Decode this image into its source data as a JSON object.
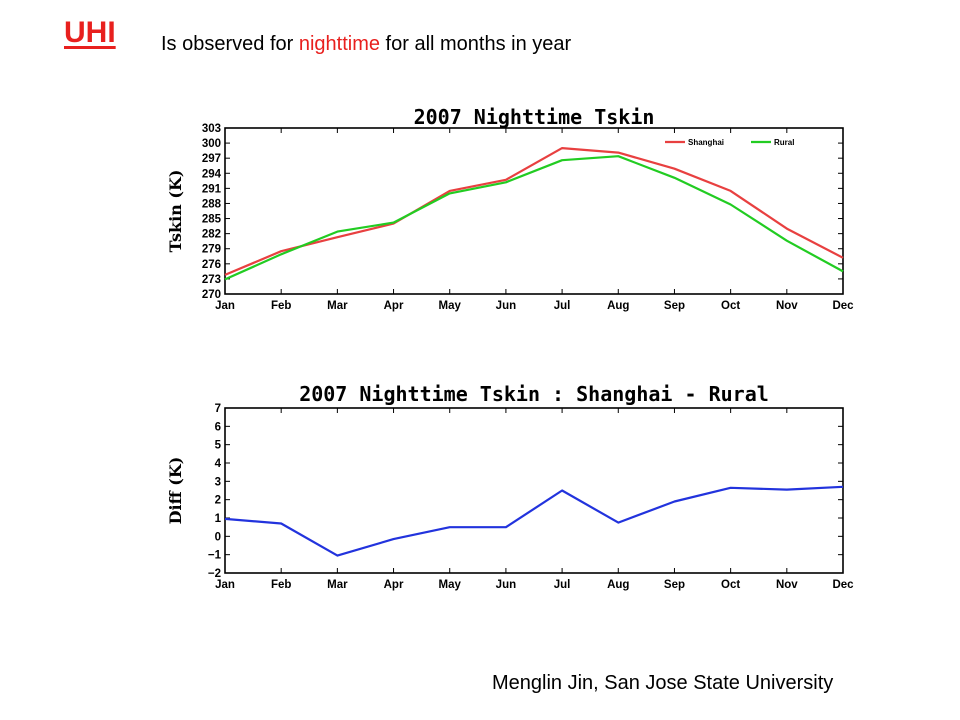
{
  "header": {
    "title": "UHI",
    "subtitle_prefix": "Is observed for ",
    "subtitle_highlight": "nighttime",
    "subtitle_suffix": " for all months in year"
  },
  "footer": {
    "credit": "Menglin Jin, San Jose State University"
  },
  "colors": {
    "accent": "#e8201e",
    "shanghai": "#e84040",
    "rural": "#22cc22",
    "diff": "#2233dd"
  },
  "chart_data": [
    {
      "type": "line",
      "title": "2007 Nighttime Tskin",
      "ylabel": "Tskin (K)",
      "xlabel": "",
      "categories": [
        "Jan",
        "Feb",
        "Mar",
        "Apr",
        "May",
        "Jun",
        "Jul",
        "Aug",
        "Sep",
        "Oct",
        "Nov",
        "Dec"
      ],
      "ylim": [
        270,
        303
      ],
      "yticks": [
        270,
        273,
        276,
        279,
        282,
        285,
        288,
        291,
        294,
        297,
        300,
        303
      ],
      "legend_position": "top-right",
      "grid": false,
      "series": [
        {
          "name": "Shanghai",
          "color": "#e84040",
          "values": [
            273.8,
            278.5,
            281.3,
            284.0,
            290.5,
            292.7,
            299.0,
            298.1,
            294.9,
            290.5,
            283.0,
            277.2
          ]
        },
        {
          "name": "Rural",
          "color": "#22cc22",
          "values": [
            272.9,
            277.9,
            282.4,
            284.2,
            290.0,
            292.2,
            296.6,
            297.4,
            293.1,
            287.8,
            280.6,
            274.5
          ]
        }
      ]
    },
    {
      "type": "line",
      "title": "2007 Nighttime Tskin : Shanghai - Rural",
      "ylabel": "Diff (K)",
      "xlabel": "",
      "categories": [
        "Jan",
        "Feb",
        "Mar",
        "Apr",
        "May",
        "Jun",
        "Jul",
        "Aug",
        "Sep",
        "Oct",
        "Nov",
        "Dec"
      ],
      "ylim": [
        -2,
        7
      ],
      "yticks": [
        -2,
        -1,
        0,
        1,
        2,
        3,
        4,
        5,
        6,
        7
      ],
      "grid": false,
      "series": [
        {
          "color": "#2233dd",
          "values": [
            0.95,
            0.7,
            -1.05,
            -0.15,
            0.5,
            0.5,
            2.5,
            0.75,
            1.9,
            2.65,
            2.55,
            2.7
          ]
        }
      ]
    }
  ]
}
